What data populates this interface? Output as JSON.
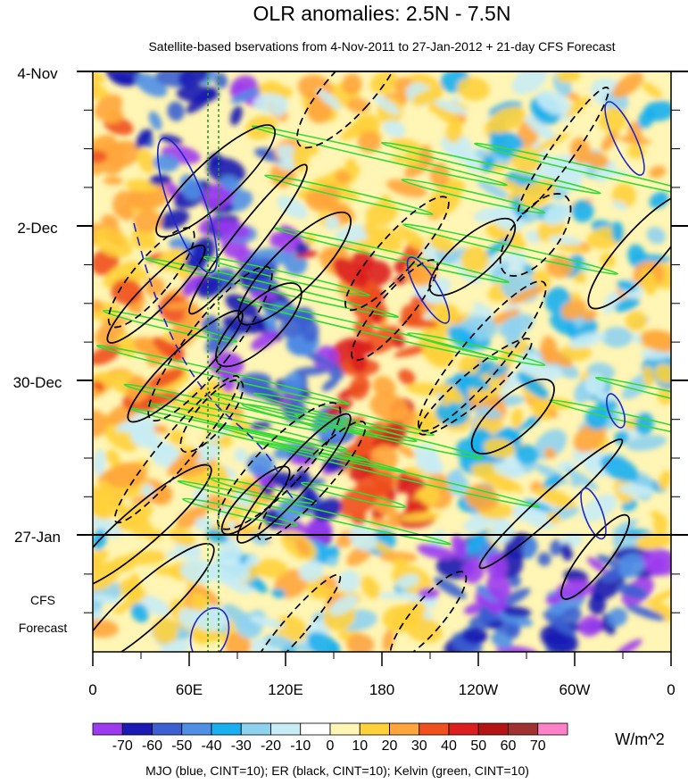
{
  "chart_data": {
    "type": "heatmap",
    "title": "OLR anomalies: 2.5N - 7.5N",
    "subtitle": "Satellite-based bservations from 4-Nov-2011 to 27-Jan-2012 + 21-day CFS Forecast",
    "x_tick_labels": [
      "0",
      "60E",
      "120E",
      "180",
      "120W",
      "60W",
      "0"
    ],
    "x_ticks_deg": [
      0,
      60,
      120,
      180,
      240,
      300,
      360
    ],
    "x_range_deg": [
      0,
      360
    ],
    "y_tick_labels": [
      "4-Nov",
      "2-Dec",
      "30-Dec",
      "27-Jan"
    ],
    "y_range": [
      "4-Nov-2011",
      "17-Feb-2012"
    ],
    "observation_end": "27-Jan",
    "forecast_label_line1": "CFS",
    "forecast_label_line2": "Forecast",
    "colorbar": {
      "unit": "W/m^2",
      "levels": [
        -70,
        -60,
        -50,
        -40,
        -30,
        -20,
        -10,
        0,
        10,
        20,
        30,
        40,
        50,
        60,
        70
      ],
      "tick_labels": [
        "-70",
        "-60",
        "-50",
        "-40",
        "-30",
        "-20",
        "-10",
        "0",
        "10",
        "20",
        "30",
        "40",
        "50",
        "60",
        "70"
      ],
      "colors": [
        "#9c3bf0",
        "#1a1ab4",
        "#3c5fd2",
        "#4f8fe6",
        "#19aff0",
        "#8fd2f0",
        "#c8ecf5",
        "#ffffff",
        "#fff5b4",
        "#ffd23c",
        "#ffa53c",
        "#f0501e",
        "#dc1e1e",
        "#b41414",
        "#a03232",
        "#ff82c8"
      ]
    },
    "overlay_caption": "MJO (blue, CINT=10); ER (black, CINT=10); Kelvin (green, CINT=10)",
    "overlay_colors": {
      "mjo": "#1e28c8",
      "er": "#000000",
      "kelvin": "#32dc32"
    }
  }
}
